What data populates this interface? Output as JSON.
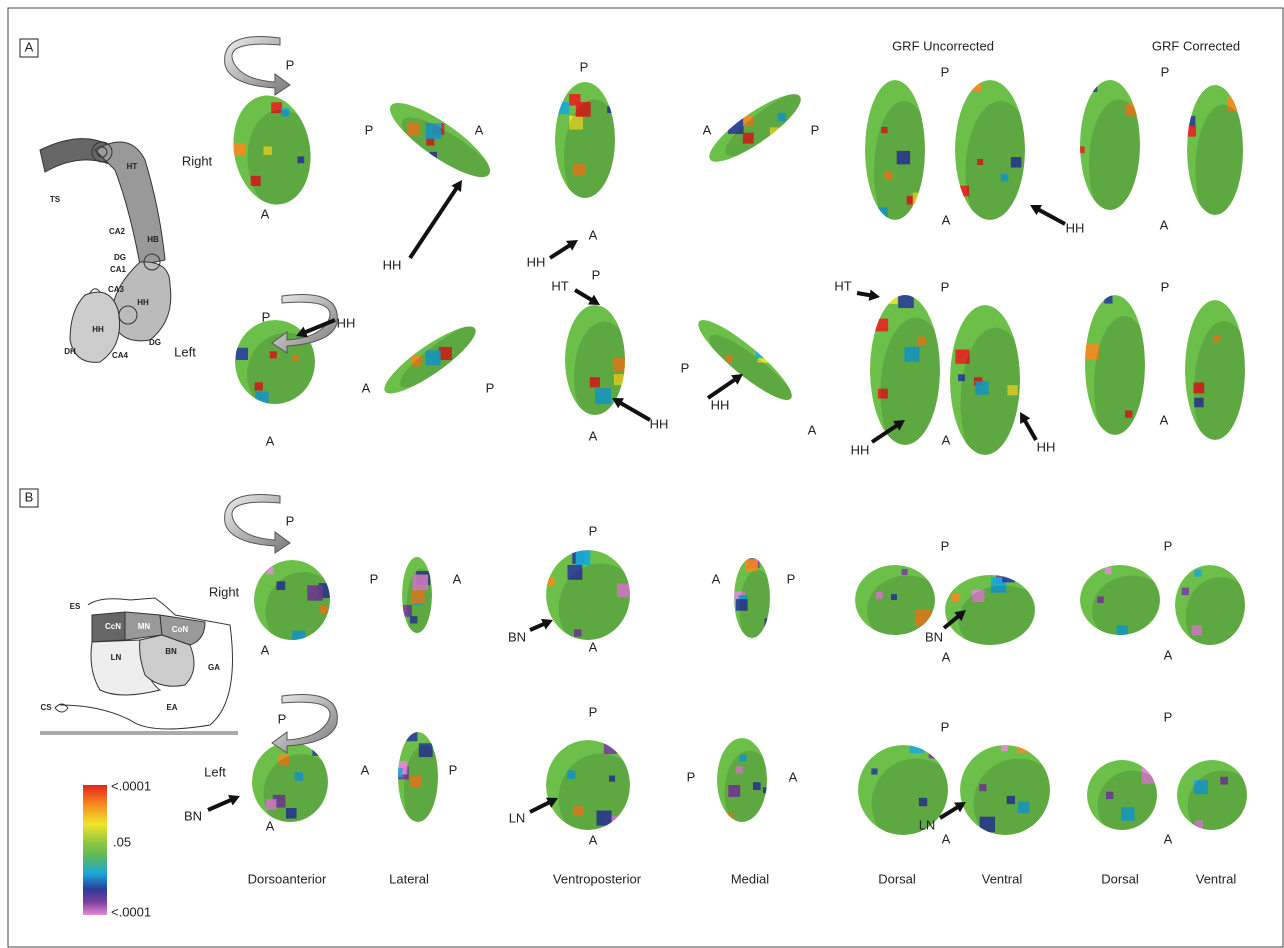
{
  "panel_a": {
    "label": "A",
    "diagram_labels": [
      "TS",
      "HT",
      "CA2",
      "HB",
      "DG",
      "CA1",
      "CA3",
      "HH",
      "HH",
      "DH",
      "CA4",
      "DG"
    ],
    "column_headers": [
      "GRF Uncorrected",
      "GRF Corrected"
    ],
    "row_labels": [
      "Right",
      "Left"
    ],
    "annotations": [
      "P",
      "A",
      "P",
      "A",
      "HH",
      "P",
      "HH",
      "A",
      "A",
      "P",
      "P",
      "A",
      "HH",
      "P",
      "A",
      "P",
      "HH",
      "A",
      "A",
      "P",
      "HT",
      "P",
      "A",
      "HH",
      "P",
      "A",
      "HH",
      "HT",
      "P",
      "A",
      "HH",
      "HH",
      "P",
      "A"
    ]
  },
  "panel_b": {
    "label": "B",
    "diagram_labels": [
      "ES",
      "CcN",
      "MN",
      "CoN",
      "LN",
      "BN",
      "GA",
      "CS",
      "EA"
    ],
    "row_labels": [
      "Right",
      "Left"
    ],
    "annotations": [
      "P",
      "A",
      "P",
      "A",
      "P",
      "BN",
      "A",
      "A",
      "P",
      "P",
      "BN",
      "A",
      "P",
      "A",
      "P",
      "BN",
      "A",
      "A",
      "P",
      "P",
      "LN",
      "A",
      "P",
      "A",
      "P",
      "LN",
      "A",
      "P",
      "A"
    ]
  },
  "colorbar_labels": [
    "<.0001",
    ".05",
    "<.0001"
  ],
  "view_labels": [
    "Dorsoanterior",
    "Lateral",
    "Ventroposterior",
    "Medial",
    "Dorsal",
    "Ventral",
    "Dorsal",
    "Ventral"
  ]
}
